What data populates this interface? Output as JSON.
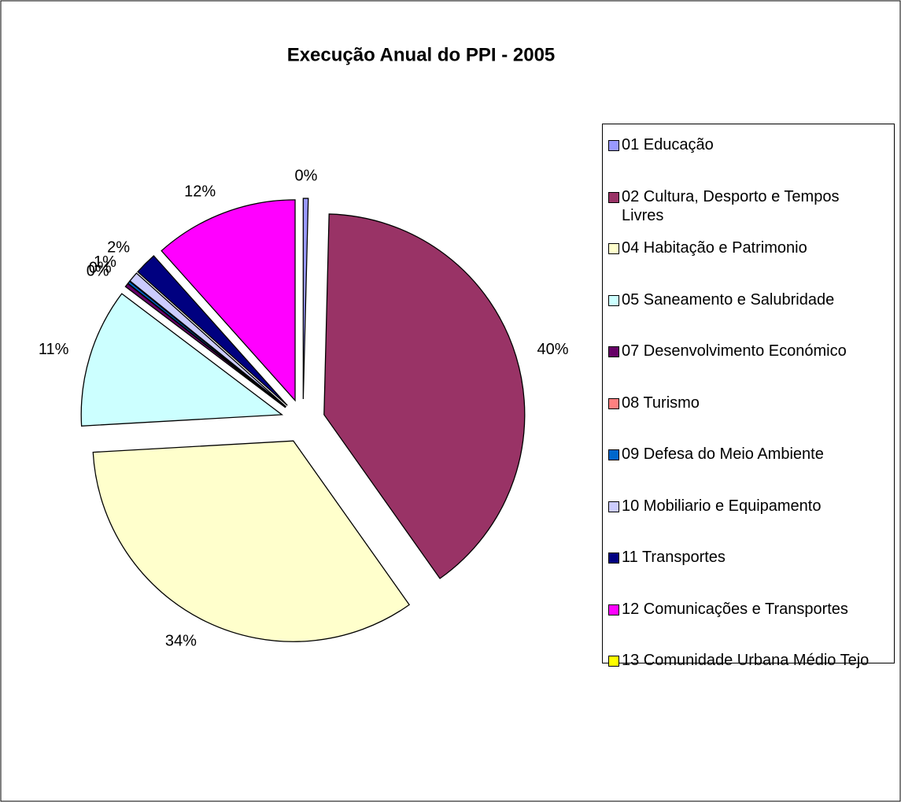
{
  "chart_data": {
    "type": "pie",
    "title": "Execução Anual do PPI - 2005",
    "categories": [
      "01 Educação",
      "02 Cultura, Desporto e Tempos Livres",
      "04 Habitação e Patrimonio",
      "05 Saneamento e Salubridade",
      "07 Desenvolvimento Económico",
      "08 Turismo",
      "09 Defesa do Meio Ambiente",
      "10 Mobiliario e Equipamento",
      "11 Transportes",
      "12 Comunicações e Transportes",
      "13 Comunidade Urbana Médio Tejo"
    ],
    "values": [
      0.4,
      39.8,
      33.9,
      11.2,
      0.3,
      0,
      0.2,
      0.8,
      1.8,
      11.6,
      0
    ],
    "value_labels": [
      "0%",
      "40%",
      "34%",
      "11%",
      "0%",
      null,
      "0%",
      "1%",
      "2%",
      "12%",
      null
    ],
    "colors": [
      "#9999FF",
      "#993366",
      "#FFFFCC",
      "#CCFFFF",
      "#660066",
      "#FF8080",
      "#0066CC",
      "#CCCCFF",
      "#000080",
      "#FF00FF",
      "#FFFF00"
    ],
    "legend": "right"
  }
}
